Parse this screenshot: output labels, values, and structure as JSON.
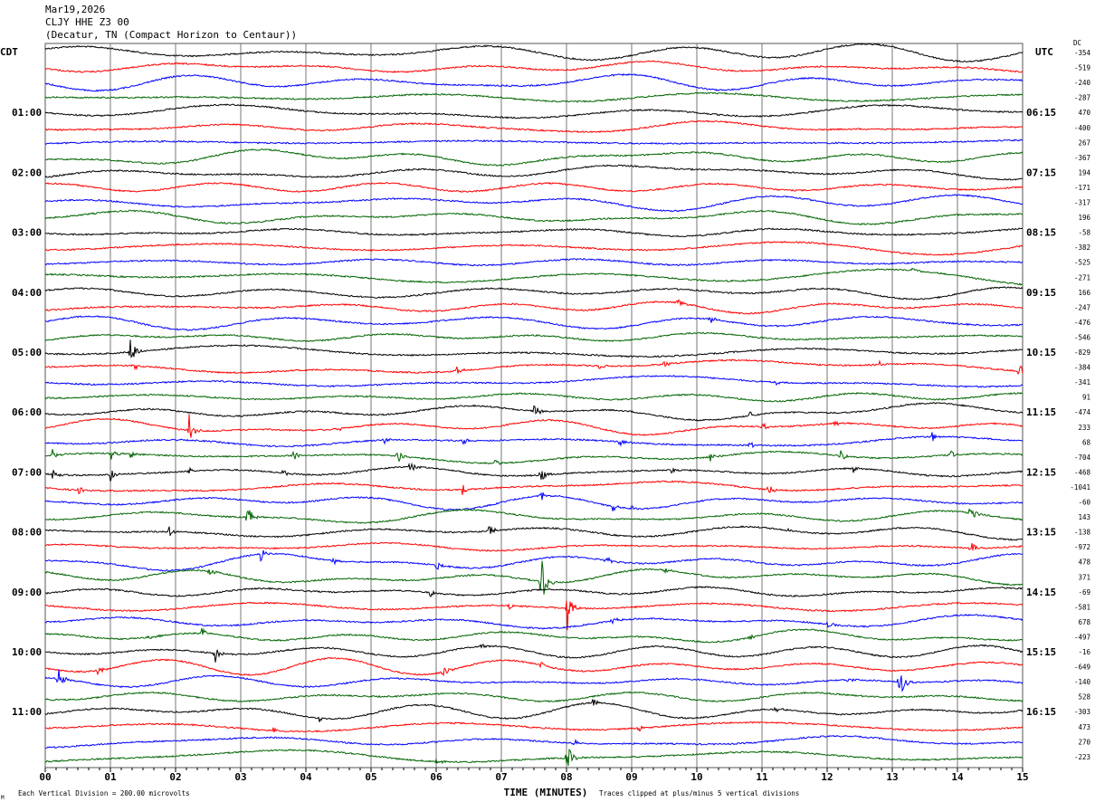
{
  "header": {
    "date": "Mar19,2026",
    "station": "CLJY HHE Z3 00",
    "location": "(Decatur, TN (Compact Horizon to Centaur))"
  },
  "chart_data": {
    "type": "line",
    "title": "CLJY HHE Z3 00 helicorder",
    "xlabel": "TIME (MINUTES)",
    "x_ticks": [
      "00",
      "01",
      "02",
      "03",
      "04",
      "05",
      "06",
      "07",
      "08",
      "09",
      "10",
      "11",
      "12",
      "13",
      "14",
      "15"
    ],
    "xlim": [
      0,
      15
    ],
    "left_axis_title": "CDT",
    "right_axis_title": "UTC",
    "dc_title": "DC",
    "left_labels": [
      "01:00",
      "02:00",
      "03:00",
      "04:00",
      "05:00",
      "06:00",
      "07:00",
      "08:00",
      "09:00",
      "10:00",
      "11:00"
    ],
    "right_labels": [
      "06:15",
      "07:15",
      "08:15",
      "09:15",
      "10:15",
      "11:15",
      "12:15",
      "13:15",
      "14:15",
      "15:15",
      "16:15"
    ],
    "trace_count": 48,
    "trace_colors": [
      "#000000",
      "#ff0000",
      "#0000ff",
      "#006400"
    ],
    "dc_offsets": [
      "-354",
      "-519",
      "-240",
      "-287",
      "470",
      "-400",
      "267",
      "-367",
      "194",
      "-171",
      "-317",
      "196",
      "-58",
      "-382",
      "-525",
      "-271",
      "166",
      "-247",
      "-476",
      "-546",
      "-829",
      "-384",
      "-341",
      "91",
      "-474",
      "233",
      "68",
      "-704",
      "-468",
      "-1041",
      "-60",
      "143",
      "-138",
      "-972",
      "478",
      "371",
      "-69",
      "-581",
      "678",
      "-497",
      "-16",
      "-649",
      "-140",
      "528",
      "-303",
      "473",
      "270",
      "-223"
    ],
    "events": [
      {
        "trace": 15,
        "minute": 13.3,
        "amp": 6
      },
      {
        "trace": 17,
        "minute": 9.7,
        "amp": 8
      },
      {
        "trace": 18,
        "minute": 10.2,
        "amp": 7
      },
      {
        "trace": 20,
        "minute": 1.3,
        "amp": 22
      },
      {
        "trace": 21,
        "minute": 1.35,
        "amp": 10
      },
      {
        "trace": 21,
        "minute": 6.3,
        "amp": 8
      },
      {
        "trace": 21,
        "minute": 8.5,
        "amp": 5
      },
      {
        "trace": 21,
        "minute": 9.5,
        "amp": 5
      },
      {
        "trace": 21,
        "minute": 12.8,
        "amp": 5
      },
      {
        "trace": 21,
        "minute": 14.95,
        "amp": 8
      },
      {
        "trace": 22,
        "minute": 11.2,
        "amp": 5
      },
      {
        "trace": 24,
        "minute": 7.5,
        "amp": 9
      },
      {
        "trace": 24,
        "minute": 10.8,
        "amp": 6
      },
      {
        "trace": 25,
        "minute": 2.2,
        "amp": 22
      },
      {
        "trace": 25,
        "minute": 4.5,
        "amp": 4
      },
      {
        "trace": 25,
        "minute": 11.0,
        "amp": 6
      },
      {
        "trace": 25,
        "minute": 12.1,
        "amp": 5
      },
      {
        "trace": 26,
        "minute": 5.2,
        "amp": 6
      },
      {
        "trace": 26,
        "minute": 6.4,
        "amp": 6
      },
      {
        "trace": 26,
        "minute": 8.8,
        "amp": 7
      },
      {
        "trace": 26,
        "minute": 10.8,
        "amp": 6
      },
      {
        "trace": 26,
        "minute": 13.6,
        "amp": 7
      },
      {
        "trace": 27,
        "minute": 0.1,
        "amp": 9
      },
      {
        "trace": 27,
        "minute": 1.0,
        "amp": 9
      },
      {
        "trace": 27,
        "minute": 1.3,
        "amp": 6
      },
      {
        "trace": 27,
        "minute": 3.8,
        "amp": 8
      },
      {
        "trace": 27,
        "minute": 5.4,
        "amp": 10
      },
      {
        "trace": 27,
        "minute": 6.9,
        "amp": 6
      },
      {
        "trace": 27,
        "minute": 10.2,
        "amp": 6
      },
      {
        "trace": 27,
        "minute": 12.2,
        "amp": 7
      },
      {
        "trace": 27,
        "minute": 13.9,
        "amp": 6
      },
      {
        "trace": 27,
        "minute": 15.0,
        "amp": 6
      },
      {
        "trace": 28,
        "minute": 0.1,
        "amp": 9
      },
      {
        "trace": 28,
        "minute": 1.0,
        "amp": 8
      },
      {
        "trace": 28,
        "minute": 2.2,
        "amp": 6
      },
      {
        "trace": 28,
        "minute": 3.6,
        "amp": 8
      },
      {
        "trace": 28,
        "minute": 5.6,
        "amp": 9
      },
      {
        "trace": 28,
        "minute": 7.6,
        "amp": 10
      },
      {
        "trace": 28,
        "minute": 9.6,
        "amp": 5
      },
      {
        "trace": 28,
        "minute": 12.4,
        "amp": 6
      },
      {
        "trace": 29,
        "minute": 0.5,
        "amp": 6
      },
      {
        "trace": 29,
        "minute": 6.4,
        "amp": 7
      },
      {
        "trace": 29,
        "minute": 11.1,
        "amp": 7
      },
      {
        "trace": 30,
        "minute": 7.6,
        "amp": 8
      },
      {
        "trace": 30,
        "minute": 8.7,
        "amp": 7
      },
      {
        "trace": 30,
        "minute": 9.0,
        "amp": 4
      },
      {
        "trace": 31,
        "minute": 3.1,
        "amp": 18
      },
      {
        "trace": 31,
        "minute": 14.2,
        "amp": 14
      },
      {
        "trace": 32,
        "minute": 1.9,
        "amp": 7
      },
      {
        "trace": 32,
        "minute": 6.8,
        "amp": 10
      },
      {
        "trace": 32,
        "minute": 11.4,
        "amp": 5
      },
      {
        "trace": 33,
        "minute": 14.2,
        "amp": 9
      },
      {
        "trace": 34,
        "minute": 3.3,
        "amp": 10
      },
      {
        "trace": 34,
        "minute": 4.4,
        "amp": 7
      },
      {
        "trace": 34,
        "minute": 6.0,
        "amp": 6
      },
      {
        "trace": 34,
        "minute": 8.6,
        "amp": 6
      },
      {
        "trace": 35,
        "minute": 7.6,
        "amp": 45
      },
      {
        "trace": 35,
        "minute": 2.5,
        "amp": 6
      },
      {
        "trace": 35,
        "minute": 9.5,
        "amp": 5
      },
      {
        "trace": 36,
        "minute": 5.9,
        "amp": 5
      },
      {
        "trace": 37,
        "minute": 8.0,
        "amp": 40
      },
      {
        "trace": 37,
        "minute": 7.1,
        "amp": 5
      },
      {
        "trace": 38,
        "minute": 8.7,
        "amp": 6
      },
      {
        "trace": 38,
        "minute": 12.0,
        "amp": 5
      },
      {
        "trace": 39,
        "minute": 2.4,
        "amp": 8
      },
      {
        "trace": 39,
        "minute": 1.6,
        "amp": 5
      },
      {
        "trace": 39,
        "minute": 10.8,
        "amp": 5
      },
      {
        "trace": 40,
        "minute": 2.6,
        "amp": 14
      },
      {
        "trace": 40,
        "minute": 6.7,
        "amp": 5
      },
      {
        "trace": 41,
        "minute": 6.1,
        "amp": 8
      },
      {
        "trace": 41,
        "minute": 7.6,
        "amp": 6
      },
      {
        "trace": 41,
        "minute": 0.8,
        "amp": 5
      },
      {
        "trace": 42,
        "minute": 0.2,
        "amp": 14
      },
      {
        "trace": 42,
        "minute": 13.1,
        "amp": 28
      },
      {
        "trace": 42,
        "minute": 12.3,
        "amp": 5
      },
      {
        "trace": 44,
        "minute": 11.2,
        "amp": 8
      },
      {
        "trace": 44,
        "minute": 4.2,
        "amp": 5
      },
      {
        "trace": 44,
        "minute": 8.4,
        "amp": 5
      },
      {
        "trace": 45,
        "minute": 9.1,
        "amp": 6
      },
      {
        "trace": 45,
        "minute": 3.5,
        "amp": 5
      },
      {
        "trace": 46,
        "minute": 8.1,
        "amp": 5
      },
      {
        "trace": 47,
        "minute": 8.0,
        "amp": 22
      },
      {
        "trace": 47,
        "minute": 6.0,
        "amp": 4
      }
    ]
  },
  "footer": {
    "scale_note": "Each Vertical Division =  200.00 microvolts",
    "clip_note": "Traces clipped at plus/minus 5 vertical divisions",
    "corner_mark": "M"
  }
}
